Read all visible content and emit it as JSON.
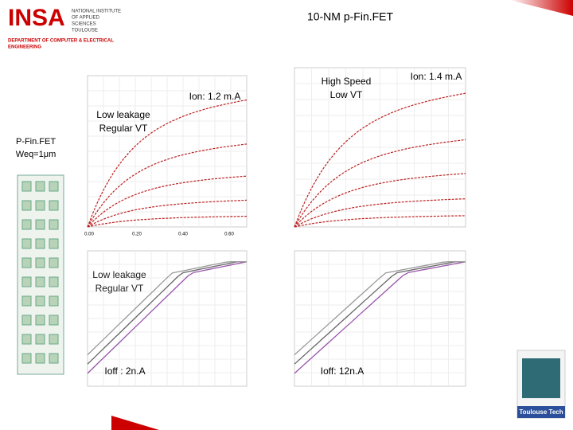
{
  "header": {
    "logo": "INSA",
    "institute": [
      "NATIONAL INSTITUTE",
      "OF APPLIED",
      "SCIENCES",
      "TOULOUSE"
    ],
    "department": [
      "DEPARTMENT OF COMPUTER & ELECTRICAL",
      "ENGINEERING"
    ],
    "title": "10-NM p-Fin.FET"
  },
  "device": {
    "lines": [
      "P-Fin.FET",
      "Weq=1μm"
    ]
  },
  "top_left": {
    "annotation": "Ion: 1.2 m.A",
    "label": [
      "Low leakage",
      "Regular VT"
    ],
    "xticks": [
      "0.00",
      "0.20",
      "0.40",
      "0.60"
    ]
  },
  "top_right": {
    "label": [
      "High Speed",
      "Low VT"
    ],
    "annotation": "Ion: 1.4 m.A"
  },
  "bottom_left": {
    "label": [
      "Low leakage",
      "Regular VT"
    ],
    "annotation": "Ioff : 2n.A"
  },
  "bottom_right": {
    "annotation": "Ioff: 12n.A"
  },
  "footer_logo": "Toulouse Tech"
}
